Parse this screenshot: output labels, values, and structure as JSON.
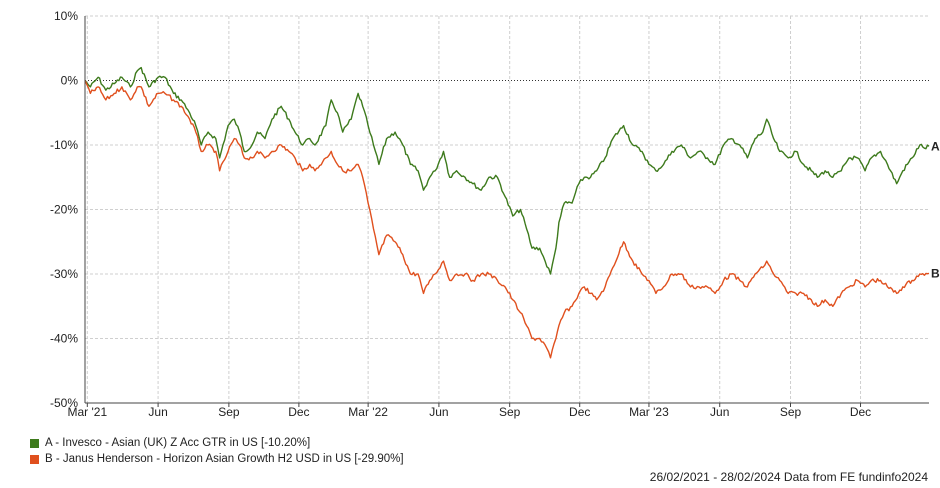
{
  "chart_data": {
    "type": "line",
    "ylim": [
      -50,
      10
    ],
    "yticks": [
      10,
      0,
      -10,
      -20,
      -30,
      -40,
      -50
    ],
    "ytick_labels": [
      "10%",
      "0%",
      "-10%",
      "-20%",
      "-30%",
      "-40%",
      "-50%"
    ],
    "xlim": [
      "2021-02-26",
      "2024-02-28"
    ],
    "xticks": [
      {
        "date": "2021-03-01",
        "label": "Mar '21"
      },
      {
        "date": "2021-06-01",
        "label": "Jun"
      },
      {
        "date": "2021-09-01",
        "label": "Sep"
      },
      {
        "date": "2021-12-01",
        "label": "Dec"
      },
      {
        "date": "2022-03-01",
        "label": "Mar '22"
      },
      {
        "date": "2022-06-01",
        "label": "Jun"
      },
      {
        "date": "2022-09-01",
        "label": "Sep"
      },
      {
        "date": "2022-12-01",
        "label": "Dec"
      },
      {
        "date": "2023-03-01",
        "label": "Mar '23"
      },
      {
        "date": "2023-06-01",
        "label": "Jun"
      },
      {
        "date": "2023-09-01",
        "label": "Sep"
      },
      {
        "date": "2023-12-01",
        "label": "Dec"
      }
    ],
    "grid": true,
    "zero_line": "dotted",
    "series": [
      {
        "name": "A - Invesco - Asian (UK) Z Acc GTR in US [-10.20%]",
        "end_label": "A",
        "color": "#3d7a1c",
        "points": [
          [
            "2021-02-26",
            0
          ],
          [
            "2021-03-05",
            -1
          ],
          [
            "2021-03-15",
            0.5
          ],
          [
            "2021-03-25",
            -1.5
          ],
          [
            "2021-04-05",
            -0.5
          ],
          [
            "2021-04-15",
            0.5
          ],
          [
            "2021-04-26",
            -1
          ],
          [
            "2021-05-05",
            1.5
          ],
          [
            "2021-05-10",
            2
          ],
          [
            "2021-05-20",
            -1
          ],
          [
            "2021-06-01",
            0.5
          ],
          [
            "2021-06-10",
            0.5
          ],
          [
            "2021-06-21",
            -2
          ],
          [
            "2021-07-01",
            -3
          ],
          [
            "2021-07-12",
            -5
          ],
          [
            "2021-07-20",
            -7
          ],
          [
            "2021-07-27",
            -10
          ],
          [
            "2021-08-05",
            -8
          ],
          [
            "2021-08-15",
            -9
          ],
          [
            "2021-08-20",
            -12
          ],
          [
            "2021-08-31",
            -7
          ],
          [
            "2021-09-08",
            -6
          ],
          [
            "2021-09-15",
            -8
          ],
          [
            "2021-09-21",
            -11
          ],
          [
            "2021-10-01",
            -10
          ],
          [
            "2021-10-08",
            -8
          ],
          [
            "2021-10-18",
            -9
          ],
          [
            "2021-10-27",
            -6
          ],
          [
            "2021-11-08",
            -4
          ],
          [
            "2021-11-18",
            -6
          ],
          [
            "2021-11-26",
            -8
          ],
          [
            "2021-12-06",
            -10
          ],
          [
            "2021-12-15",
            -9
          ],
          [
            "2021-12-22",
            -10
          ],
          [
            "2022-01-05",
            -7
          ],
          [
            "2022-01-12",
            -3
          ],
          [
            "2022-01-20",
            -5
          ],
          [
            "2022-01-27",
            -8
          ],
          [
            "2022-02-07",
            -6
          ],
          [
            "2022-02-16",
            -2
          ],
          [
            "2022-02-22",
            -4
          ],
          [
            "2022-03-01",
            -7
          ],
          [
            "2022-03-08",
            -10
          ],
          [
            "2022-03-15",
            -13
          ],
          [
            "2022-03-25",
            -9
          ],
          [
            "2022-04-05",
            -8
          ],
          [
            "2022-04-15",
            -10
          ],
          [
            "2022-04-25",
            -13
          ],
          [
            "2022-05-05",
            -14
          ],
          [
            "2022-05-12",
            -17
          ],
          [
            "2022-05-20",
            -15
          ],
          [
            "2022-05-27",
            -14
          ],
          [
            "2022-06-07",
            -11
          ],
          [
            "2022-06-15",
            -15
          ],
          [
            "2022-06-24",
            -14
          ],
          [
            "2022-07-05",
            -15
          ],
          [
            "2022-07-15",
            -16
          ],
          [
            "2022-07-26",
            -17
          ],
          [
            "2022-08-05",
            -15
          ],
          [
            "2022-08-16",
            -15
          ],
          [
            "2022-08-26",
            -18
          ],
          [
            "2022-09-05",
            -21
          ],
          [
            "2022-09-15",
            -20
          ],
          [
            "2022-09-23",
            -23
          ],
          [
            "2022-09-30",
            -26
          ],
          [
            "2022-10-10",
            -26
          ],
          [
            "2022-10-17",
            -28
          ],
          [
            "2022-10-24",
            -30
          ],
          [
            "2022-10-31",
            -26
          ],
          [
            "2022-11-04",
            -22
          ],
          [
            "2022-11-11",
            -19
          ],
          [
            "2022-11-21",
            -19
          ],
          [
            "2022-11-30",
            -16
          ],
          [
            "2022-12-07",
            -15
          ],
          [
            "2022-12-15",
            -15
          ],
          [
            "2022-12-23",
            -14
          ],
          [
            "2023-01-03",
            -12
          ],
          [
            "2023-01-13",
            -9
          ],
          [
            "2023-01-27",
            -7
          ],
          [
            "2023-02-08",
            -10
          ],
          [
            "2023-02-20",
            -11
          ],
          [
            "2023-03-01",
            -13
          ],
          [
            "2023-03-10",
            -14
          ],
          [
            "2023-03-20",
            -13
          ],
          [
            "2023-03-31",
            -11
          ],
          [
            "2023-04-12",
            -10
          ],
          [
            "2023-04-24",
            -12
          ],
          [
            "2023-05-05",
            -11
          ],
          [
            "2023-05-16",
            -12
          ],
          [
            "2023-05-26",
            -13
          ],
          [
            "2023-06-06",
            -10
          ],
          [
            "2023-06-16",
            -9
          ],
          [
            "2023-06-27",
            -10
          ],
          [
            "2023-07-07",
            -12
          ],
          [
            "2023-07-17",
            -9
          ],
          [
            "2023-07-27",
            -8
          ],
          [
            "2023-08-01",
            -6
          ],
          [
            "2023-08-10",
            -9
          ],
          [
            "2023-08-18",
            -11
          ],
          [
            "2023-08-29",
            -12
          ],
          [
            "2023-09-08",
            -11
          ],
          [
            "2023-09-18",
            -13
          ],
          [
            "2023-09-28",
            -14
          ],
          [
            "2023-10-06",
            -15
          ],
          [
            "2023-10-16",
            -14
          ],
          [
            "2023-10-26",
            -15
          ],
          [
            "2023-11-06",
            -14
          ],
          [
            "2023-11-16",
            -12
          ],
          [
            "2023-11-27",
            -12
          ],
          [
            "2023-12-07",
            -14
          ],
          [
            "2023-12-15",
            -12
          ],
          [
            "2023-12-27",
            -11
          ],
          [
            "2024-01-05",
            -13
          ],
          [
            "2024-01-17",
            -16
          ],
          [
            "2024-01-25",
            -14
          ],
          [
            "2024-02-06",
            -12
          ],
          [
            "2024-02-16",
            -10
          ],
          [
            "2024-02-22",
            -10.5
          ],
          [
            "2024-02-28",
            -10.2
          ]
        ]
      },
      {
        "name": "B - Janus Henderson - Horizon Asian Growth H2 USD in US [-29.90%]",
        "end_label": "B",
        "color": "#e0501e",
        "points": [
          [
            "2021-02-26",
            0
          ],
          [
            "2021-03-05",
            -2
          ],
          [
            "2021-03-15",
            -1
          ],
          [
            "2021-03-25",
            -3
          ],
          [
            "2021-04-05",
            -2
          ],
          [
            "2021-04-15",
            -1
          ],
          [
            "2021-04-26",
            -3
          ],
          [
            "2021-05-05",
            -1
          ],
          [
            "2021-05-10",
            -1
          ],
          [
            "2021-05-20",
            -4
          ],
          [
            "2021-06-01",
            -2
          ],
          [
            "2021-06-10",
            -2
          ],
          [
            "2021-06-21",
            -3
          ],
          [
            "2021-07-01",
            -4
          ],
          [
            "2021-07-12",
            -6
          ],
          [
            "2021-07-20",
            -8
          ],
          [
            "2021-07-27",
            -11
          ],
          [
            "2021-08-05",
            -10
          ],
          [
            "2021-08-15",
            -11
          ],
          [
            "2021-08-20",
            -14
          ],
          [
            "2021-08-31",
            -11
          ],
          [
            "2021-09-08",
            -9
          ],
          [
            "2021-09-15",
            -10
          ],
          [
            "2021-09-21",
            -12
          ],
          [
            "2021-10-01",
            -12
          ],
          [
            "2021-10-08",
            -11
          ],
          [
            "2021-10-18",
            -12
          ],
          [
            "2021-10-27",
            -11
          ],
          [
            "2021-11-08",
            -10
          ],
          [
            "2021-11-18",
            -11
          ],
          [
            "2021-11-26",
            -12
          ],
          [
            "2021-12-06",
            -14
          ],
          [
            "2021-12-15",
            -13
          ],
          [
            "2021-12-22",
            -14
          ],
          [
            "2022-01-05",
            -12
          ],
          [
            "2022-01-12",
            -11
          ],
          [
            "2022-01-20",
            -13
          ],
          [
            "2022-01-27",
            -14
          ],
          [
            "2022-02-07",
            -14
          ],
          [
            "2022-02-16",
            -13
          ],
          [
            "2022-02-22",
            -15
          ],
          [
            "2022-03-01",
            -19
          ],
          [
            "2022-03-08",
            -23
          ],
          [
            "2022-03-15",
            -27
          ],
          [
            "2022-03-25",
            -24
          ],
          [
            "2022-04-05",
            -25
          ],
          [
            "2022-04-15",
            -27
          ],
          [
            "2022-04-25",
            -30
          ],
          [
            "2022-05-05",
            -30
          ],
          [
            "2022-05-12",
            -33
          ],
          [
            "2022-05-20",
            -31
          ],
          [
            "2022-05-27",
            -30
          ],
          [
            "2022-06-07",
            -28
          ],
          [
            "2022-06-15",
            -31
          ],
          [
            "2022-06-24",
            -30
          ],
          [
            "2022-07-05",
            -30
          ],
          [
            "2022-07-15",
            -31
          ],
          [
            "2022-07-26",
            -30
          ],
          [
            "2022-08-05",
            -30
          ],
          [
            "2022-08-16",
            -31
          ],
          [
            "2022-08-26",
            -32
          ],
          [
            "2022-09-05",
            -34
          ],
          [
            "2022-09-15",
            -36
          ],
          [
            "2022-09-23",
            -38
          ],
          [
            "2022-09-30",
            -40
          ],
          [
            "2022-10-10",
            -40
          ],
          [
            "2022-10-17",
            -41
          ],
          [
            "2022-10-24",
            -43
          ],
          [
            "2022-10-31",
            -40
          ],
          [
            "2022-11-04",
            -38
          ],
          [
            "2022-11-11",
            -36
          ],
          [
            "2022-11-21",
            -35
          ],
          [
            "2022-11-30",
            -33
          ],
          [
            "2022-12-07",
            -32
          ],
          [
            "2022-12-15",
            -33
          ],
          [
            "2022-12-23",
            -34
          ],
          [
            "2023-01-03",
            -32
          ],
          [
            "2023-01-13",
            -29
          ],
          [
            "2023-01-27",
            -25
          ],
          [
            "2023-02-08",
            -28
          ],
          [
            "2023-02-20",
            -30
          ],
          [
            "2023-03-01",
            -31
          ],
          [
            "2023-03-10",
            -33
          ],
          [
            "2023-03-20",
            -32
          ],
          [
            "2023-03-31",
            -30
          ],
          [
            "2023-04-12",
            -30
          ],
          [
            "2023-04-24",
            -32
          ],
          [
            "2023-05-05",
            -32
          ],
          [
            "2023-05-16",
            -32
          ],
          [
            "2023-05-26",
            -33
          ],
          [
            "2023-06-06",
            -31
          ],
          [
            "2023-06-16",
            -30
          ],
          [
            "2023-06-27",
            -31
          ],
          [
            "2023-07-07",
            -32
          ],
          [
            "2023-07-17",
            -30
          ],
          [
            "2023-07-27",
            -29
          ],
          [
            "2023-08-01",
            -28
          ],
          [
            "2023-08-10",
            -30
          ],
          [
            "2023-08-18",
            -31
          ],
          [
            "2023-08-29",
            -33
          ],
          [
            "2023-09-08",
            -33
          ],
          [
            "2023-09-18",
            -33
          ],
          [
            "2023-09-28",
            -34
          ],
          [
            "2023-10-06",
            -35
          ],
          [
            "2023-10-16",
            -34
          ],
          [
            "2023-10-26",
            -35
          ],
          [
            "2023-11-06",
            -33
          ],
          [
            "2023-11-16",
            -32
          ],
          [
            "2023-11-27",
            -31
          ],
          [
            "2023-12-07",
            -32
          ],
          [
            "2023-12-15",
            -31
          ],
          [
            "2023-12-27",
            -31
          ],
          [
            "2024-01-05",
            -32
          ],
          [
            "2024-01-17",
            -33
          ],
          [
            "2024-01-25",
            -32
          ],
          [
            "2024-02-06",
            -31
          ],
          [
            "2024-02-16",
            -30
          ],
          [
            "2024-02-22",
            -30.2
          ],
          [
            "2024-02-28",
            -29.9
          ]
        ]
      }
    ]
  },
  "footer": "26/02/2021 - 28/02/2024 Data from FE fundinfo2024"
}
